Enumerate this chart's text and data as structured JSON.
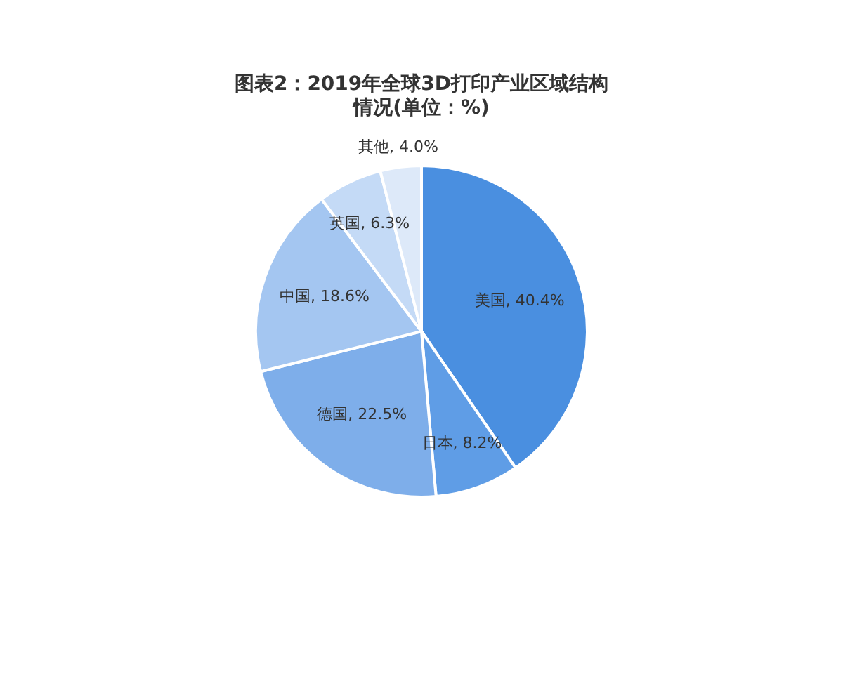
{
  "chart_data": {
    "type": "pie",
    "title": "图表2：2019年全球3D打印产业区域结构情况(单位：%)",
    "categories": [
      "美国",
      "日本",
      "德国",
      "中国",
      "英国",
      "其他"
    ],
    "values": [
      40.4,
      8.2,
      22.5,
      18.6,
      6.3,
      4.0
    ],
    "value_labels": [
      "40.4%",
      "8.2%",
      "22.5%",
      "18.6%",
      "6.3%",
      "4.0%"
    ],
    "colors": [
      "#4a8fe0",
      "#5f9de6",
      "#7eaeea",
      "#a4c6f1",
      "#c4daf6",
      "#dde9f9"
    ]
  }
}
